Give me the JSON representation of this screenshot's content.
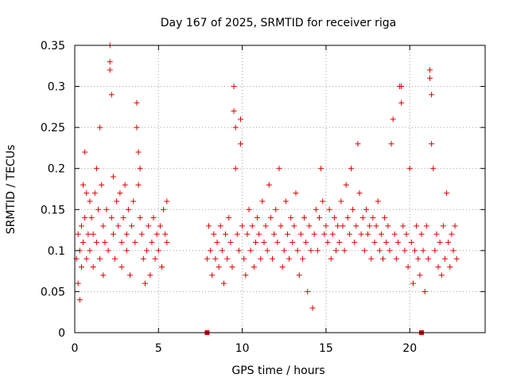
{
  "chart_data": {
    "type": "scatter",
    "title": "Day 167 of 2025, SRMTID for receiver riga",
    "xlabel": "GPS time / hours",
    "ylabel": "SRMTID / TECUs",
    "xlim": [
      0,
      24.5
    ],
    "ylim": [
      0,
      0.35
    ],
    "xticks": [
      0,
      5,
      10,
      15,
      20
    ],
    "yticks": [
      0,
      0.05,
      0.1,
      0.15,
      0.2,
      0.25,
      0.3,
      0.35
    ],
    "xtick_labels": [
      "0",
      "5",
      "10",
      "15",
      "20"
    ],
    "ytick_labels": [
      "0",
      "0.05",
      "0.1",
      "0.15",
      "0.2",
      "0.25",
      "0.3",
      "0.35"
    ],
    "grid": true,
    "marker": "+",
    "color": "#e00000",
    "zero_markers": [
      {
        "x": 7.9,
        "y": 0
      },
      {
        "x": 20.7,
        "y": 0
      }
    ],
    "series": [
      {
        "name": "SRMTID",
        "points": [
          [
            0.1,
            0.09
          ],
          [
            0.2,
            0.12
          ],
          [
            0.2,
            0.06
          ],
          [
            0.3,
            0.1
          ],
          [
            0.3,
            0.04
          ],
          [
            0.4,
            0.13
          ],
          [
            0.4,
            0.08
          ],
          [
            0.5,
            0.18
          ],
          [
            0.5,
            0.11
          ],
          [
            0.6,
            0.22
          ],
          [
            0.6,
            0.14
          ],
          [
            0.7,
            0.09
          ],
          [
            0.7,
            0.17
          ],
          [
            0.8,
            0.12
          ],
          [
            0.9,
            0.1
          ],
          [
            0.9,
            0.16
          ],
          [
            1.0,
            0.14
          ],
          [
            1.1,
            0.08
          ],
          [
            1.1,
            0.12
          ],
          [
            1.2,
            0.17
          ],
          [
            1.3,
            0.11
          ],
          [
            1.3,
            0.2
          ],
          [
            1.4,
            0.15
          ],
          [
            1.5,
            0.25
          ],
          [
            1.5,
            0.09
          ],
          [
            1.6,
            0.18
          ],
          [
            1.7,
            0.13
          ],
          [
            1.7,
            0.07
          ],
          [
            1.8,
            0.11
          ],
          [
            1.9,
            0.15
          ],
          [
            2.0,
            0.1
          ],
          [
            2.1,
            0.35
          ],
          [
            2.1,
            0.33
          ],
          [
            2.1,
            0.32
          ],
          [
            2.2,
            0.29
          ],
          [
            2.2,
            0.14
          ],
          [
            2.3,
            0.12
          ],
          [
            2.3,
            0.19
          ],
          [
            2.4,
            0.09
          ],
          [
            2.5,
            0.16
          ],
          [
            2.6,
            0.13
          ],
          [
            2.7,
            0.17
          ],
          [
            2.8,
            0.11
          ],
          [
            2.8,
            0.08
          ],
          [
            2.9,
            0.14
          ],
          [
            3.0,
            0.18
          ],
          [
            3.1,
            0.12
          ],
          [
            3.1,
            0.1
          ],
          [
            3.2,
            0.15
          ],
          [
            3.3,
            0.07
          ],
          [
            3.4,
            0.13
          ],
          [
            3.5,
            0.16
          ],
          [
            3.6,
            0.11
          ],
          [
            3.7,
            0.28
          ],
          [
            3.7,
            0.25
          ],
          [
            3.8,
            0.22
          ],
          [
            3.8,
            0.18
          ],
          [
            3.9,
            0.2
          ],
          [
            3.9,
            0.14
          ],
          [
            4.0,
            0.12
          ],
          [
            4.1,
            0.09
          ],
          [
            4.2,
            0.06
          ],
          [
            4.3,
            0.1
          ],
          [
            4.4,
            0.13
          ],
          [
            4.5,
            0.07
          ],
          [
            4.6,
            0.11
          ],
          [
            4.7,
            0.14
          ],
          [
            4.8,
            0.09
          ],
          [
            4.9,
            0.12
          ],
          [
            5.0,
            0.1
          ],
          [
            5.1,
            0.13
          ],
          [
            5.2,
            0.08
          ],
          [
            5.3,
            0.15
          ],
          [
            5.4,
            0.12
          ],
          [
            5.5,
            0.16
          ],
          [
            5.5,
            0.11
          ],
          [
            7.9,
            0.09
          ],
          [
            8.0,
            0.13
          ],
          [
            8.1,
            0.1
          ],
          [
            8.2,
            0.07
          ],
          [
            8.3,
            0.12
          ],
          [
            8.4,
            0.09
          ],
          [
            8.5,
            0.11
          ],
          [
            8.6,
            0.08
          ],
          [
            8.7,
            0.13
          ],
          [
            8.8,
            0.1
          ],
          [
            8.9,
            0.06
          ],
          [
            9.0,
            0.12
          ],
          [
            9.1,
            0.09
          ],
          [
            9.2,
            0.14
          ],
          [
            9.3,
            0.11
          ],
          [
            9.4,
            0.08
          ],
          [
            9.5,
            0.3
          ],
          [
            9.5,
            0.27
          ],
          [
            9.6,
            0.25
          ],
          [
            9.6,
            0.2
          ],
          [
            9.7,
            0.12
          ],
          [
            9.8,
            0.1
          ],
          [
            9.9,
            0.26
          ],
          [
            9.9,
            0.23
          ],
          [
            10.0,
            0.13
          ],
          [
            10.1,
            0.09
          ],
          [
            10.2,
            0.07
          ],
          [
            10.3,
            0.12
          ],
          [
            10.4,
            0.15
          ],
          [
            10.5,
            0.1
          ],
          [
            10.6,
            0.13
          ],
          [
            10.7,
            0.08
          ],
          [
            10.8,
            0.11
          ],
          [
            10.9,
            0.14
          ],
          [
            11.0,
            0.12
          ],
          [
            11.1,
            0.09
          ],
          [
            11.2,
            0.16
          ],
          [
            11.3,
            0.11
          ],
          [
            11.4,
            0.13
          ],
          [
            11.5,
            0.1
          ],
          [
            11.6,
            0.18
          ],
          [
            11.7,
            0.14
          ],
          [
            11.8,
            0.09
          ],
          [
            11.9,
            0.12
          ],
          [
            12.0,
            0.15
          ],
          [
            12.1,
            0.11
          ],
          [
            12.2,
            0.2
          ],
          [
            12.3,
            0.13
          ],
          [
            12.4,
            0.08
          ],
          [
            12.5,
            0.1
          ],
          [
            12.6,
            0.16
          ],
          [
            12.7,
            0.12
          ],
          [
            12.8,
            0.09
          ],
          [
            12.9,
            0.14
          ],
          [
            13.0,
            0.11
          ],
          [
            13.1,
            0.13
          ],
          [
            13.2,
            0.17
          ],
          [
            13.3,
            0.1
          ],
          [
            13.4,
            0.07
          ],
          [
            13.5,
            0.12
          ],
          [
            13.6,
            0.09
          ],
          [
            13.7,
            0.14
          ],
          [
            13.8,
            0.11
          ],
          [
            13.9,
            0.05
          ],
          [
            14.0,
            0.13
          ],
          [
            14.1,
            0.1
          ],
          [
            14.2,
            0.03
          ],
          [
            14.3,
            0.12
          ],
          [
            14.4,
            0.15
          ],
          [
            14.5,
            0.1
          ],
          [
            14.6,
            0.14
          ],
          [
            14.7,
            0.2
          ],
          [
            14.8,
            0.16
          ],
          [
            14.9,
            0.12
          ],
          [
            15.0,
            0.13
          ],
          [
            15.1,
            0.11
          ],
          [
            15.2,
            0.15
          ],
          [
            15.3,
            0.09
          ],
          [
            15.4,
            0.12
          ],
          [
            15.5,
            0.14
          ],
          [
            15.6,
            0.1
          ],
          [
            15.7,
            0.13
          ],
          [
            15.8,
            0.11
          ],
          [
            15.9,
            0.16
          ],
          [
            16.0,
            0.13
          ],
          [
            16.1,
            0.1
          ],
          [
            16.2,
            0.18
          ],
          [
            16.3,
            0.14
          ],
          [
            16.4,
            0.12
          ],
          [
            16.5,
            0.2
          ],
          [
            16.6,
            0.15
          ],
          [
            16.7,
            0.11
          ],
          [
            16.8,
            0.13
          ],
          [
            16.9,
            0.23
          ],
          [
            17.0,
            0.17
          ],
          [
            17.1,
            0.12
          ],
          [
            17.2,
            0.14
          ],
          [
            17.3,
            0.1
          ],
          [
            17.4,
            0.15
          ],
          [
            17.5,
            0.12
          ],
          [
            17.6,
            0.13
          ],
          [
            17.7,
            0.09
          ],
          [
            17.8,
            0.14
          ],
          [
            17.9,
            0.11
          ],
          [
            18.0,
            0.13
          ],
          [
            18.1,
            0.16
          ],
          [
            18.2,
            0.1
          ],
          [
            18.3,
            0.12
          ],
          [
            18.4,
            0.09
          ],
          [
            18.5,
            0.14
          ],
          [
            18.6,
            0.11
          ],
          [
            18.7,
            0.13
          ],
          [
            18.8,
            0.1
          ],
          [
            18.9,
            0.23
          ],
          [
            19.0,
            0.26
          ],
          [
            19.1,
            0.12
          ],
          [
            19.2,
            0.09
          ],
          [
            19.3,
            0.11
          ],
          [
            19.4,
            0.3
          ],
          [
            19.5,
            0.3
          ],
          [
            19.5,
            0.28
          ],
          [
            19.6,
            0.13
          ],
          [
            19.7,
            0.1
          ],
          [
            19.8,
            0.12
          ],
          [
            19.9,
            0.08
          ],
          [
            20.0,
            0.2
          ],
          [
            20.1,
            0.11
          ],
          [
            20.2,
            0.06
          ],
          [
            20.3,
            0.1
          ],
          [
            20.4,
            0.13
          ],
          [
            20.5,
            0.09
          ],
          [
            20.6,
            0.07
          ],
          [
            20.7,
            0.12
          ],
          [
            20.8,
            0.1
          ],
          [
            20.9,
            0.05
          ],
          [
            21.0,
            0.13
          ],
          [
            21.1,
            0.09
          ],
          [
            21.2,
            0.32
          ],
          [
            21.2,
            0.31
          ],
          [
            21.3,
            0.29
          ],
          [
            21.3,
            0.23
          ],
          [
            21.4,
            0.2
          ],
          [
            21.5,
            0.1
          ],
          [
            21.6,
            0.12
          ],
          [
            21.7,
            0.08
          ],
          [
            21.8,
            0.11
          ],
          [
            21.9,
            0.07
          ],
          [
            22.0,
            0.13
          ],
          [
            22.1,
            0.09
          ],
          [
            22.2,
            0.17
          ],
          [
            22.3,
            0.11
          ],
          [
            22.4,
            0.08
          ],
          [
            22.5,
            0.12
          ],
          [
            22.6,
            0.1
          ],
          [
            22.7,
            0.13
          ],
          [
            22.8,
            0.09
          ]
        ]
      }
    ]
  }
}
